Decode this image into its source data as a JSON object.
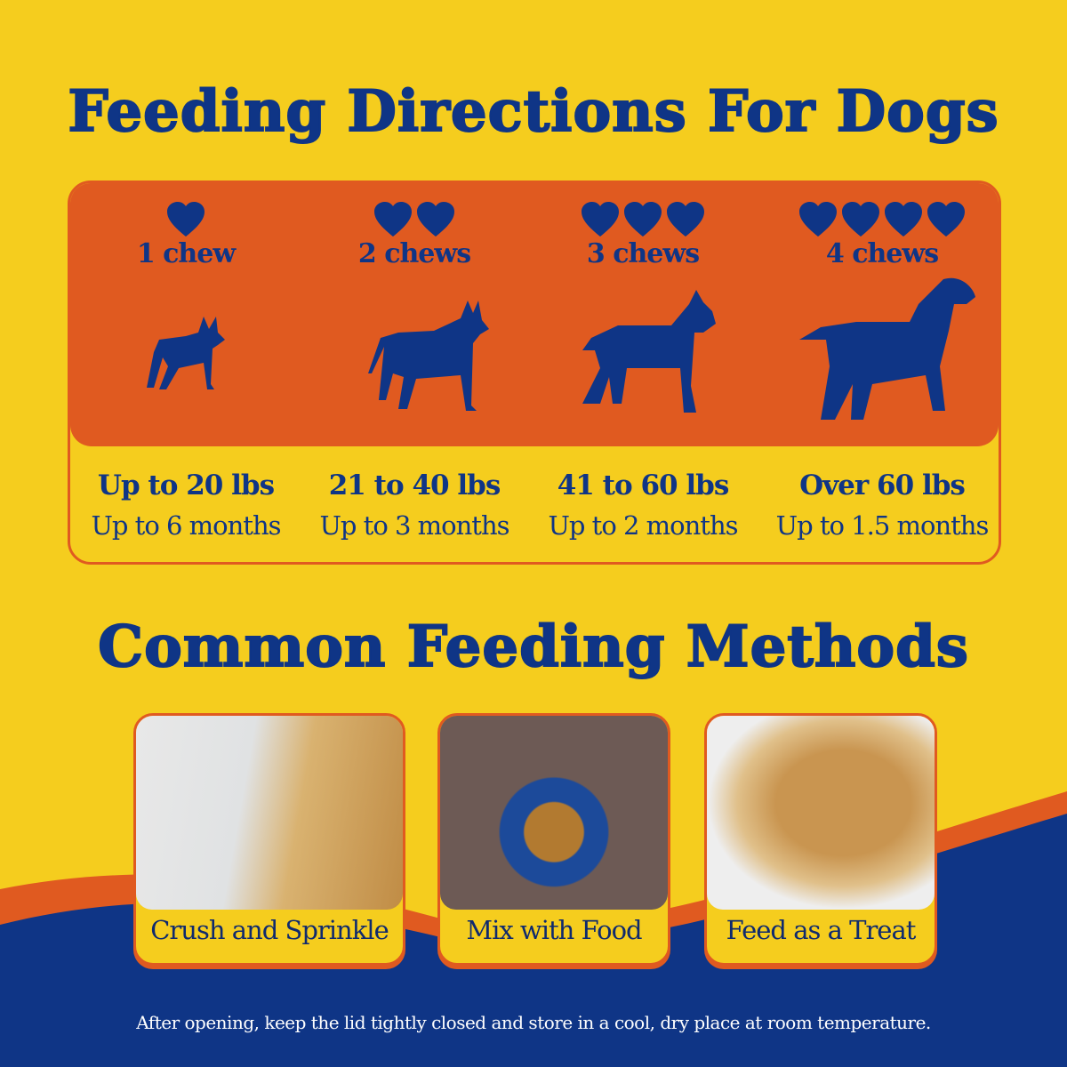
{
  "colors": {
    "yellow": "#f5cd1e",
    "orange": "#e05a20",
    "blue": "#0f3586"
  },
  "title": "Feeding Directions For Dogs",
  "doses": [
    {
      "hearts": 1,
      "chews": "1 chew",
      "weight": "Up to 20 lbs",
      "duration": "Up to 6 months",
      "icon": "small-dog-silhouette-icon"
    },
    {
      "hearts": 2,
      "chews": "2 chews",
      "weight": "21 to 40 lbs",
      "duration": "Up to 3 months",
      "icon": "medium-dog-silhouette-icon"
    },
    {
      "hearts": 3,
      "chews": "3 chews",
      "weight": "41 to 60 lbs",
      "duration": "Up to 2 months",
      "icon": "schnauzer-silhouette-icon"
    },
    {
      "hearts": 4,
      "chews": "4 chews",
      "weight": "Over 60 lbs",
      "duration": "Up to 1.5 months",
      "icon": "spaniel-silhouette-icon"
    }
  ],
  "methods_title": "Common Feeding Methods",
  "methods": [
    {
      "label": "Crush and Sprinkle"
    },
    {
      "label": "Mix with Food"
    },
    {
      "label": "Feed as a Treat"
    }
  ],
  "note": "After opening, keep the lid tightly closed and store in a cool, dry place at room temperature."
}
